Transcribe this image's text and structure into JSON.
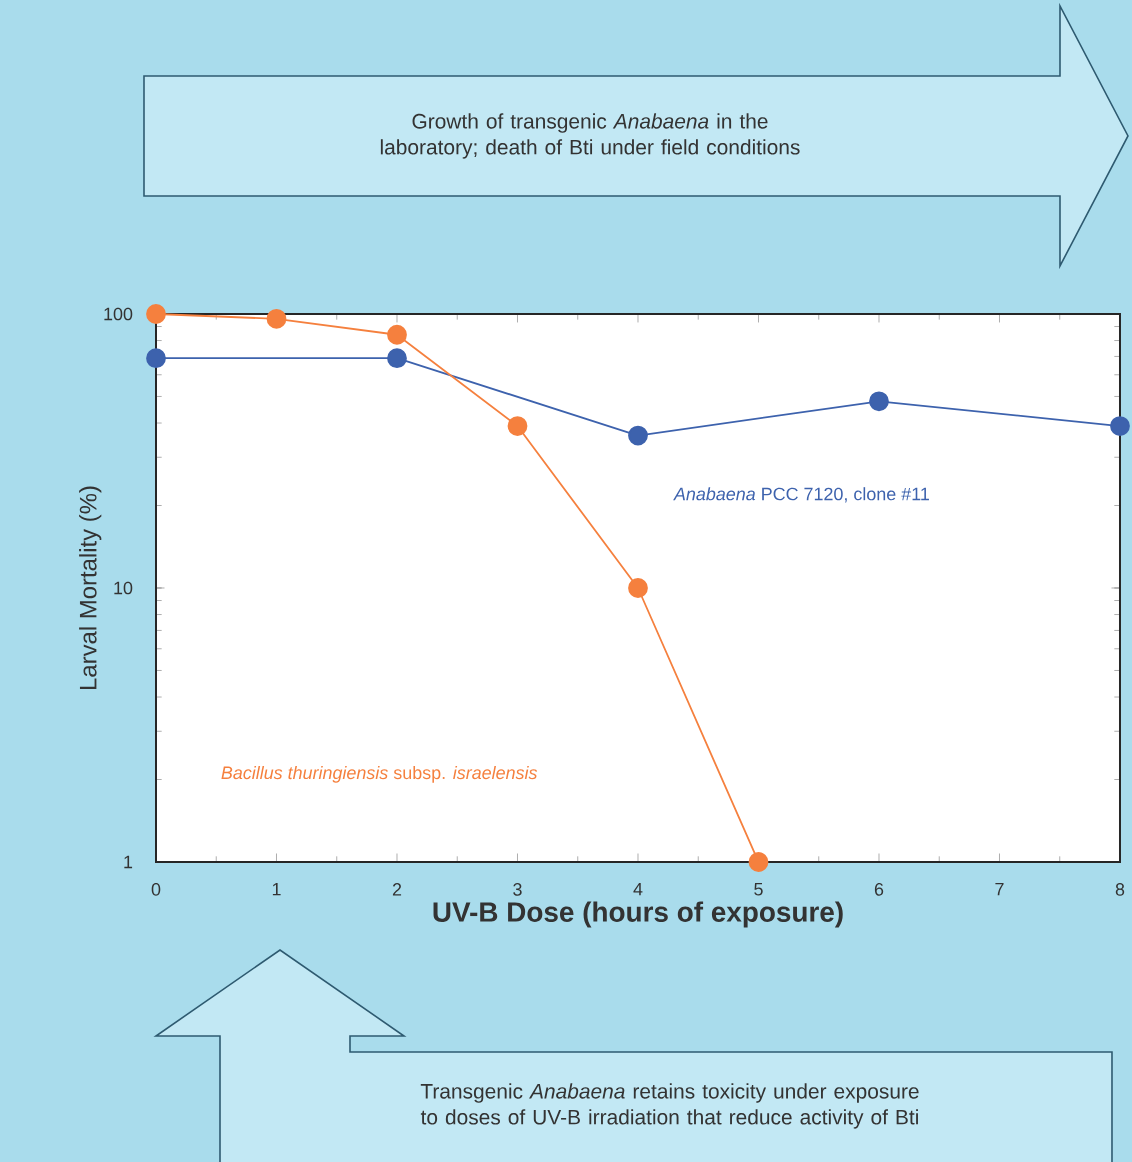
{
  "chart_data": {
    "type": "line",
    "xlabel": "UV-B Dose (hours of exposure)",
    "ylabel": "Larval Mortality (%)",
    "log": "y",
    "marker": "circle",
    "xlim": [
      0,
      8
    ],
    "ylim": [
      1,
      100
    ],
    "xticks": [
      0,
      1,
      2,
      3,
      4,
      5,
      6,
      7,
      8
    ],
    "yticks": [
      1,
      10,
      100
    ],
    "series": [
      {
        "name": "*Anabaena* PCC 7120, clone #11",
        "color": "#3d62ad",
        "x": [
          0,
          2,
          4,
          6,
          8
        ],
        "values": [
          69,
          69,
          36,
          48,
          39
        ]
      },
      {
        "name": "*Bacillus thuringiensis* subsp. *israelensis*",
        "color": "#f5803e",
        "x": [
          0,
          1,
          2,
          3,
          4,
          5
        ],
        "values": [
          100,
          96,
          84,
          39,
          10,
          1
        ]
      }
    ],
    "annotations": [
      "Growth of transgenic *Anabaena* in the laboratory; death of Bti under field conditions",
      "Transgenic *Anabaena* retains toxicity under exposure to doses of UV-B irradiation that reduce activity of Bti"
    ]
  }
}
